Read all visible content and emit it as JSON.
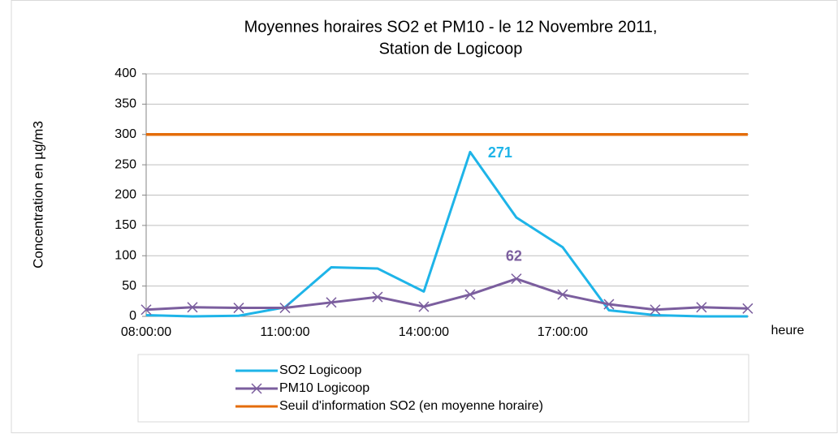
{
  "chart_data": {
    "type": "line",
    "title": [
      "Moyennes horaires SO2 et PM10 -  le 12 Novembre  2011,",
      "Station de Logicoop"
    ],
    "x_label": "heure",
    "y_label": "Concentration en µg/m3",
    "categories": [
      "08:00:00",
      null,
      null,
      "11:00:00",
      null,
      null,
      "14:00:00",
      null,
      null,
      "17:00:00",
      null,
      null,
      null,
      null
    ],
    "series": [
      {
        "name": "SO2 Logicoop",
        "color": "#1eb4e8",
        "values": [
          2,
          0,
          1,
          15,
          81,
          79,
          41,
          271,
          163,
          114,
          10,
          2,
          0,
          0
        ]
      },
      {
        "name": "PM10 Logicoop",
        "color": "#7b5e9e",
        "marker": "x",
        "values": [
          11,
          15,
          14,
          14,
          23,
          32,
          16,
          36,
          62,
          36,
          20,
          11,
          15,
          13
        ]
      },
      {
        "name": "Seuil d'information SO2 (en moyenne horaire)",
        "color": "#e46c0a",
        "values": [
          300,
          300,
          300,
          300,
          300,
          300,
          300,
          300,
          300,
          300,
          300,
          300,
          300,
          300
        ]
      }
    ],
    "data_labels": [
      {
        "series": 0,
        "index": 7
      },
      {
        "series": 1,
        "index": 8
      }
    ],
    "ylim": [
      0,
      400
    ],
    "yticks": [
      0,
      50,
      100,
      150,
      200,
      250,
      300,
      350,
      400
    ],
    "grid": true
  }
}
